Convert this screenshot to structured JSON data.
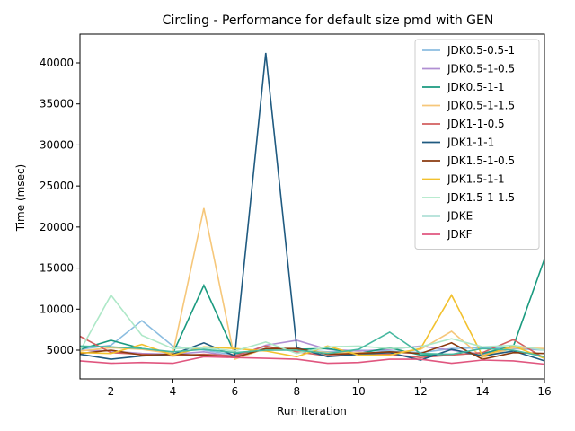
{
  "chart_data": {
    "type": "line",
    "title": "Circling - Performance for default size pmd with GEN",
    "xlabel": "Run Iteration",
    "ylabel": "Time (msec)",
    "xlim": [
      1,
      16
    ],
    "ylim": [
      1500,
      43500
    ],
    "x_ticks": [
      2,
      4,
      6,
      8,
      10,
      12,
      14,
      16
    ],
    "y_ticks": [
      5000,
      10000,
      15000,
      20000,
      25000,
      30000,
      35000,
      40000
    ],
    "legend_position": "top-right",
    "grid": false,
    "x": [
      1,
      2,
      3,
      4,
      5,
      6,
      7,
      8,
      9,
      10,
      11,
      12,
      13,
      14,
      15,
      16
    ],
    "series": [
      {
        "name": "JDK0.5-0.5-1",
        "color": "#8bbde0",
        "values": [
          5100,
          5600,
          8600,
          5500,
          5000,
          4400,
          5200,
          5000,
          4800,
          5000,
          4900,
          4700,
          5200,
          5300,
          5200,
          5000
        ]
      },
      {
        "name": "JDK0.5-1-0.5",
        "color": "#b08fd3",
        "values": [
          5000,
          4900,
          4600,
          4500,
          4800,
          4200,
          5600,
          6200,
          5100,
          4900,
          5100,
          5500,
          5000,
          4500,
          5300,
          5100
        ]
      },
      {
        "name": "JDK0.5-1-1",
        "color": "#1a9a7f",
        "values": [
          5100,
          6200,
          5200,
          4600,
          12900,
          4600,
          5000,
          5100,
          5200,
          4600,
          5300,
          4400,
          4500,
          4600,
          5500,
          16100
        ]
      },
      {
        "name": "JDK0.5-1-1.5",
        "color": "#f6c77a",
        "values": [
          4900,
          5300,
          5100,
          4600,
          22300,
          3900,
          5200,
          5000,
          4700,
          4700,
          4600,
          5100,
          7300,
          4100,
          5300,
          5200
        ]
      },
      {
        "name": "JDK1-1-0.5",
        "color": "#d35f5f",
        "values": [
          6700,
          4700,
          4500,
          4300,
          4500,
          4300,
          5500,
          4800,
          4300,
          4500,
          4500,
          4100,
          4400,
          4700,
          6300,
          4000
        ]
      },
      {
        "name": "JDK1-1-1",
        "color": "#1f5a80",
        "values": [
          4500,
          3900,
          4300,
          4500,
          5900,
          4300,
          41200,
          5300,
          4200,
          4500,
          4700,
          3800,
          5100,
          4300,
          4900,
          3700
        ]
      },
      {
        "name": "JDK1.5-1-0.5",
        "color": "#8a3a0e",
        "values": [
          4600,
          5000,
          4400,
          4500,
          4400,
          4100,
          5200,
          5200,
          4500,
          4600,
          4800,
          4600,
          5900,
          3900,
          4700,
          4600
        ]
      },
      {
        "name": "JDK1.5-1-1",
        "color": "#f2c12e",
        "values": [
          4700,
          4600,
          5700,
          4400,
          5400,
          5200,
          4900,
          4200,
          5500,
          4400,
          4400,
          5200,
          11700,
          4300,
          5500,
          4000
        ]
      },
      {
        "name": "JDK1.5-1-1.5",
        "color": "#aee8c8",
        "values": [
          4900,
          11700,
          6800,
          5200,
          5300,
          4900,
          6000,
          4600,
          5400,
          5500,
          5200,
          5400,
          6400,
          5400,
          5600,
          5000
        ]
      },
      {
        "name": "JDKE",
        "color": "#46b8a0",
        "values": [
          5500,
          5400,
          5200,
          4800,
          5100,
          4700,
          5000,
          5000,
          4600,
          5100,
          7200,
          4600,
          4500,
          5200,
          5000,
          4200
        ]
      },
      {
        "name": "JDKF",
        "color": "#e0567f",
        "values": [
          3700,
          3400,
          3500,
          3400,
          4200,
          4100,
          4000,
          3900,
          3400,
          3500,
          3900,
          3900,
          3400,
          3800,
          3700,
          3300
        ]
      }
    ]
  }
}
